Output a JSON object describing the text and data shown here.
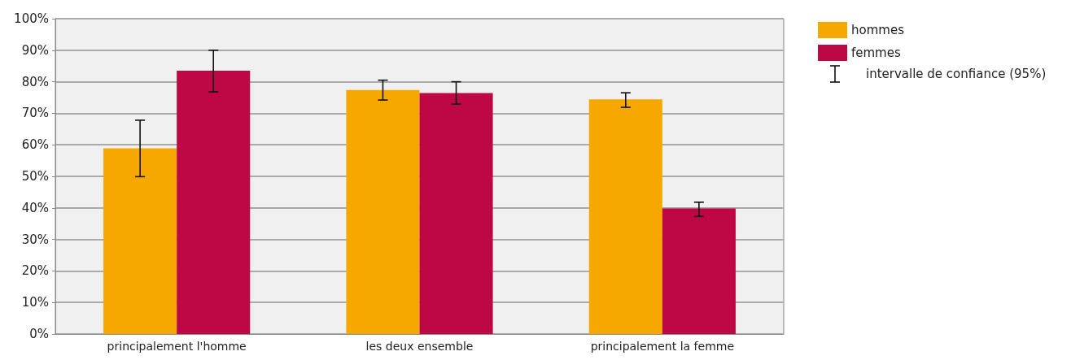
{
  "chart_data": {
    "type": "bar",
    "categories": [
      "principalement l'homme",
      "les deux ensemble",
      "principalement la femme"
    ],
    "series": [
      {
        "name": "hommes",
        "color": "#f7a800",
        "values": [
          58.9,
          77.4,
          74.4
        ],
        "errors": [
          [
            49.9,
            67.8
          ],
          [
            74.2,
            80.5
          ],
          [
            71.9,
            76.5
          ]
        ]
      },
      {
        "name": "femmes",
        "color": "#be0846",
        "values": [
          83.5,
          76.4,
          39.8
        ],
        "errors": [
          [
            76.8,
            90
          ],
          [
            72.9,
            80
          ],
          [
            37.3,
            41.8
          ]
        ]
      }
    ],
    "ylim": [
      0,
      100
    ],
    "yticks": [
      {
        "value": 0,
        "label": "0%"
      },
      {
        "value": 10,
        "label": "10%"
      },
      {
        "value": 20,
        "label": "20%"
      },
      {
        "value": 30,
        "label": "30%"
      },
      {
        "value": 40,
        "label": "40%"
      },
      {
        "value": 50,
        "label": "50%"
      },
      {
        "value": 60,
        "label": "60%"
      },
      {
        "value": 70,
        "label": "70%"
      },
      {
        "value": 80,
        "label": "80%"
      },
      {
        "value": 90,
        "label": "90%"
      },
      {
        "value": 100,
        "label": "100%"
      }
    ],
    "grid": "y",
    "legend": "top right",
    "annotations": [
      "intervalle de confiance (95%)"
    ]
  }
}
